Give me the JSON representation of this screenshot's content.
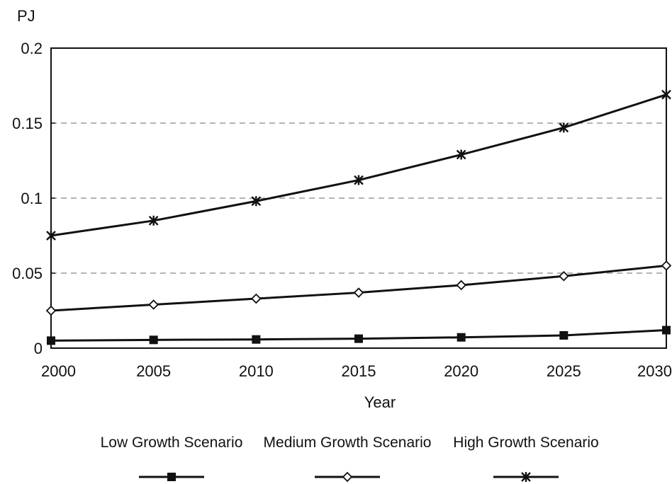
{
  "chart_data": {
    "type": "line",
    "ylabel": "PJ",
    "xlabel": "Year",
    "x": [
      2000,
      2005,
      2010,
      2015,
      2020,
      2025,
      2030
    ],
    "xlim": [
      2000,
      2030
    ],
    "ylim": [
      0,
      0.2
    ],
    "yticks": [
      0,
      0.05,
      0.1,
      0.15,
      0.2
    ],
    "ytick_labels": [
      "0",
      "0.05",
      "0.1",
      "0.15",
      "0.2"
    ],
    "xtick_labels": [
      "2000",
      "2005",
      "2010",
      "2015",
      "2020",
      "2025",
      "2030"
    ],
    "grid": "horizontal dashed",
    "legend_position": "bottom",
    "series": [
      {
        "name": "Low Growth Scenario",
        "marker": "square",
        "values": [
          0.005,
          0.0055,
          0.0058,
          0.0063,
          0.0072,
          0.0085,
          0.012
        ]
      },
      {
        "name": "Medium Growth Scenario",
        "marker": "diamond",
        "values": [
          0.025,
          0.029,
          0.033,
          0.037,
          0.042,
          0.048,
          0.055
        ]
      },
      {
        "name": "High Growth Scenario",
        "marker": "star",
        "values": [
          0.075,
          0.085,
          0.098,
          0.112,
          0.129,
          0.147,
          0.169
        ]
      }
    ],
    "colors": {
      "line": "#111111",
      "grid": "#888888"
    }
  }
}
